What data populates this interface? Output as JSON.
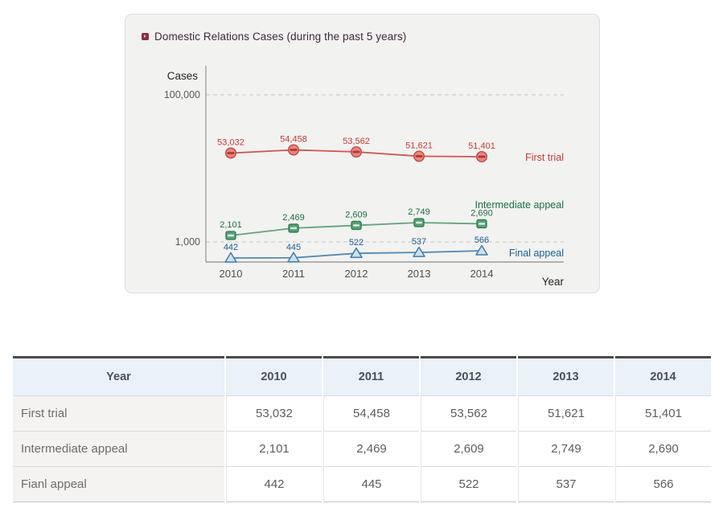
{
  "chart_panel": {
    "title": "Domestic Relations Cases (during the past 5 years)",
    "bullet_color": "#8c2b43",
    "y_axis_label": "Cases",
    "x_axis_label": "Year",
    "y_ticks": [
      "100,000",
      "1,000"
    ],
    "x_ticks": [
      "2010",
      "2011",
      "2012",
      "2013",
      "2014"
    ]
  },
  "chart_data": {
    "type": "line",
    "title": "Domestic Relations Cases (during the past 5 years)",
    "xlabel": "Year",
    "ylabel": "Cases",
    "x": [
      2010,
      2011,
      2012,
      2013,
      2014
    ],
    "y_scale": "log",
    "y_gridlines": [
      100000,
      1000
    ],
    "grid": "dashed-horizontal",
    "legend_position": "right-of-lines",
    "series": [
      {
        "name": "First trial",
        "values": [
          53032,
          54458,
          53562,
          51621,
          51401
        ],
        "labels": [
          "53,032",
          "54,458",
          "53,562",
          "51,621",
          "51,401"
        ],
        "marker": "circle",
        "color": "#d0544c",
        "label_color": "#c53a34",
        "marker_fill": "#ef837b",
        "marker_stroke": "#bc4a43",
        "marker_stripe": "#a53c37"
      },
      {
        "name": "Intermediate appeal",
        "values": [
          2101,
          2469,
          2609,
          2749,
          2690
        ],
        "labels": [
          "2,101",
          "2,469",
          "2,609",
          "2,749",
          "2,690"
        ],
        "marker": "square",
        "color": "#61a47c",
        "label_color": "#1d6f42",
        "marker_fill": "#55a375",
        "marker_stroke": "#2e7a4e",
        "marker_stripe": "#e7f3ea"
      },
      {
        "name": "Final appeal",
        "values": [
          442,
          445,
          522,
          537,
          566
        ],
        "labels": [
          "442",
          "445",
          "522",
          "537",
          "566"
        ],
        "marker": "triangle",
        "color": "#4c87b5",
        "label_color": "#1d5d92",
        "marker_fill": "#cde1ef",
        "marker_stroke": "#3f7dab",
        "marker_stripe": ""
      }
    ]
  },
  "table": {
    "header": [
      "Year",
      "2010",
      "2011",
      "2012",
      "2013",
      "2014"
    ],
    "rows": [
      {
        "label": "First trial",
        "values": [
          "53,032",
          "54,458",
          "53,562",
          "51,621",
          "51,401"
        ]
      },
      {
        "label": "Intermediate appeal",
        "values": [
          "2,101",
          "2,469",
          "2,609",
          "2,749",
          "2,690"
        ]
      },
      {
        "label": "Fianl appeal",
        "values": [
          "442",
          "445",
          "522",
          "537",
          "566"
        ]
      }
    ]
  }
}
